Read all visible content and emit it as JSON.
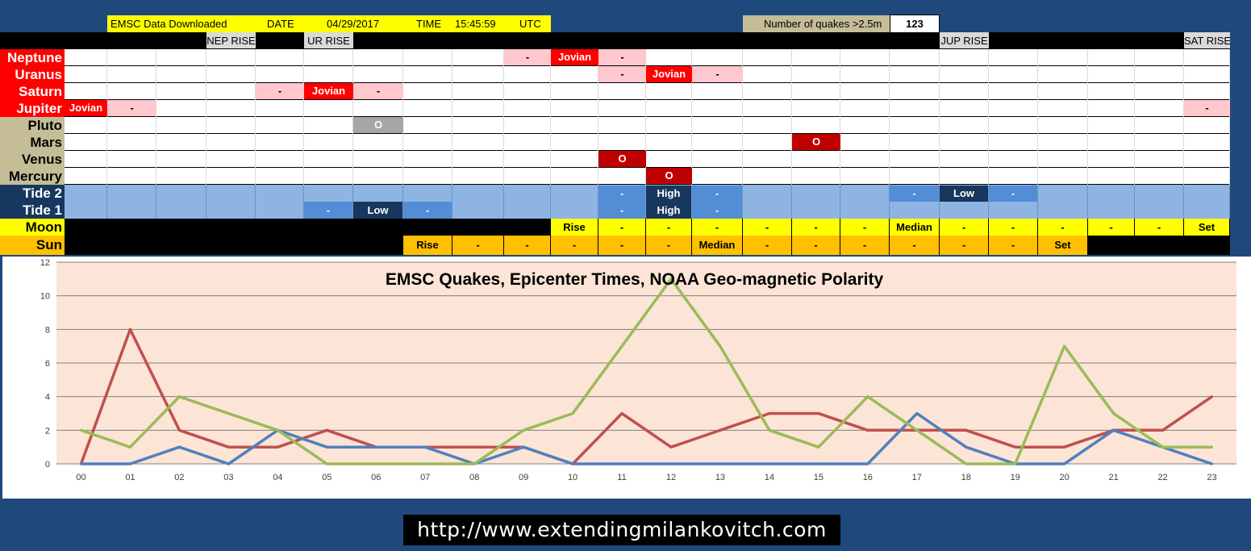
{
  "header": {
    "source_label": "EMSC Data Downloaded",
    "date_label": "DATE",
    "date_value": "04/29/2017",
    "time_label": "TIME",
    "time_value": "15:45:59",
    "tz": "UTC",
    "quakes_label": "Number of quakes >2.5m",
    "quakes_count": "123"
  },
  "rise_markers": [
    {
      "col": 4,
      "label": "NEP RISE"
    },
    {
      "col": 6,
      "label": "UR RISE"
    },
    {
      "col": 19,
      "label": "JUP RISE"
    },
    {
      "col": 24,
      "label": "SAT RISE"
    }
  ],
  "rows": [
    {
      "label": "Neptune",
      "label_color": "#ff0000",
      "text_color": "#ffffff",
      "cells": [
        {
          "col": 10,
          "text": "-",
          "style": "pink"
        },
        {
          "col": 11,
          "text": "Jovian",
          "style": "red"
        },
        {
          "col": 12,
          "text": "-",
          "style": "pink"
        }
      ]
    },
    {
      "label": "Uranus",
      "label_color": "#ff0000",
      "text_color": "#ffffff",
      "cells": [
        {
          "col": 12,
          "text": "-",
          "style": "pink"
        },
        {
          "col": 13,
          "text": "Jovian",
          "style": "red"
        },
        {
          "col": 14,
          "text": "-",
          "style": "pink"
        }
      ]
    },
    {
      "label": "Saturn",
      "label_color": "#ff0000",
      "text_color": "#ffffff",
      "cells": [
        {
          "col": 5,
          "text": "-",
          "style": "pink"
        },
        {
          "col": 6,
          "text": "Jovian",
          "style": "red"
        },
        {
          "col": 7,
          "text": "-",
          "style": "pink"
        }
      ]
    },
    {
      "label": "Jupiter",
      "label_color": "#ff0000",
      "text_color": "#ffffff",
      "cells": [
        {
          "col": 1,
          "text": "Jovian",
          "style": "red"
        },
        {
          "col": 2,
          "text": "-",
          "style": "pink"
        },
        {
          "col": 24,
          "text": "-",
          "style": "pink"
        }
      ]
    },
    {
      "label": "Pluto",
      "label_color": "#c4bd97",
      "text_color": "#000000",
      "cells": [
        {
          "col": 7,
          "text": "O",
          "style": "gray"
        }
      ]
    },
    {
      "label": "Mars",
      "label_color": "#c4bd97",
      "text_color": "#000000",
      "cells": [
        {
          "col": 16,
          "text": "O",
          "style": "dred"
        }
      ]
    },
    {
      "label": "Venus",
      "label_color": "#c4bd97",
      "text_color": "#000000",
      "cells": [
        {
          "col": 12,
          "text": "O",
          "style": "dred"
        }
      ]
    },
    {
      "label": "Mercury",
      "label_color": "#c4bd97",
      "text_color": "#000000",
      "cells": [
        {
          "col": 13,
          "text": "O",
          "style": "dred"
        }
      ]
    }
  ],
  "tides": {
    "tide2_label": "Tide 2",
    "tide1_label": "Tide 1",
    "tide2_cells": [
      {
        "col": 12,
        "text": "-",
        "style": "mid"
      },
      {
        "col": 13,
        "text": "High",
        "style": "dark"
      },
      {
        "col": 14,
        "text": "-",
        "style": "mid"
      },
      {
        "col": 18,
        "text": "-",
        "style": "mid"
      },
      {
        "col": 19,
        "text": "Low",
        "style": "dark"
      },
      {
        "col": 20,
        "text": "-",
        "style": "mid"
      }
    ],
    "tide1_cells": [
      {
        "col": 6,
        "text": "-",
        "style": "mid"
      },
      {
        "col": 7,
        "text": "Low",
        "style": "dark"
      },
      {
        "col": 8,
        "text": "-",
        "style": "mid"
      },
      {
        "col": 12,
        "text": "-",
        "style": "mid"
      },
      {
        "col": 13,
        "text": "High",
        "style": "dark"
      },
      {
        "col": 14,
        "text": "-",
        "style": "mid"
      }
    ]
  },
  "moon": {
    "label": "Moon",
    "start_col": 11,
    "end_col": 24,
    "cells": [
      {
        "col": 11,
        "text": "Rise"
      },
      {
        "col": 12,
        "text": "-"
      },
      {
        "col": 13,
        "text": "-"
      },
      {
        "col": 14,
        "text": "-"
      },
      {
        "col": 15,
        "text": "-"
      },
      {
        "col": 16,
        "text": "-"
      },
      {
        "col": 17,
        "text": "-"
      },
      {
        "col": 18,
        "text": "Median"
      },
      {
        "col": 19,
        "text": "-"
      },
      {
        "col": 20,
        "text": "-"
      },
      {
        "col": 21,
        "text": "-"
      },
      {
        "col": 22,
        "text": "-"
      },
      {
        "col": 23,
        "text": "-"
      },
      {
        "col": 24,
        "text": "Set"
      }
    ]
  },
  "sun": {
    "label": "Sun",
    "start_col": 8,
    "end_col": 21,
    "cells": [
      {
        "col": 8,
        "text": "Rise"
      },
      {
        "col": 9,
        "text": "-"
      },
      {
        "col": 10,
        "text": "-"
      },
      {
        "col": 11,
        "text": "-"
      },
      {
        "col": 12,
        "text": "-"
      },
      {
        "col": 13,
        "text": "-"
      },
      {
        "col": 14,
        "text": "Median"
      },
      {
        "col": 15,
        "text": "-"
      },
      {
        "col": 16,
        "text": "-"
      },
      {
        "col": 17,
        "text": "-"
      },
      {
        "col": 18,
        "text": "-"
      },
      {
        "col": 19,
        "text": "-"
      },
      {
        "col": 20,
        "text": "-"
      },
      {
        "col": 21,
        "text": "Set"
      }
    ]
  },
  "colors": {
    "bar_black": "#000000",
    "pink": "#ffc7ce",
    "red": "#ff0000",
    "dred": "#c00000",
    "gray": "#a6a6a6",
    "tide_light": "#8db4e2",
    "tide_mid": "#538dd5",
    "tide_dark": "#17375e",
    "moon_yellow": "#ffff00",
    "sun_orange": "#ffc000",
    "plot_bg": "#fce4d6",
    "series_red": "#c0504d",
    "series_blue": "#4f81bd",
    "series_green": "#9bbb59"
  },
  "chart_data": {
    "type": "line",
    "title": "EMSC Quakes, Epicenter Times, NOAA Geo-magnetic Polarity",
    "categories": [
      "00",
      "01",
      "02",
      "03",
      "04",
      "05",
      "06",
      "07",
      "08",
      "09",
      "10",
      "11",
      "12",
      "13",
      "14",
      "15",
      "16",
      "17",
      "18",
      "19",
      "20",
      "21",
      "22",
      "23"
    ],
    "ylim": [
      0,
      12
    ],
    "yticks": [
      0,
      2,
      4,
      6,
      8,
      10,
      12
    ],
    "grid": true,
    "series": [
      {
        "color": "#c0504d",
        "values": [
          0,
          8,
          2,
          1,
          1,
          2,
          1,
          1,
          1,
          1,
          0,
          3,
          1,
          2,
          3,
          3,
          2,
          2,
          2,
          1,
          1,
          2,
          2,
          4
        ]
      },
      {
        "color": "#4f81bd",
        "values": [
          0,
          0,
          1,
          0,
          2,
          1,
          1,
          1,
          0,
          1,
          0,
          0,
          0,
          0,
          0,
          0,
          0,
          3,
          1,
          0,
          0,
          2,
          1,
          0
        ]
      },
      {
        "color": "#9bbb59",
        "values": [
          2,
          1,
          4,
          3,
          2,
          0,
          0,
          0,
          0,
          2,
          3,
          7,
          11,
          7,
          2,
          1,
          4,
          2,
          0,
          0,
          7,
          3,
          1,
          1
        ]
      }
    ]
  },
  "footer": {
    "url": "http://www.extendingmilankovitch.com"
  }
}
